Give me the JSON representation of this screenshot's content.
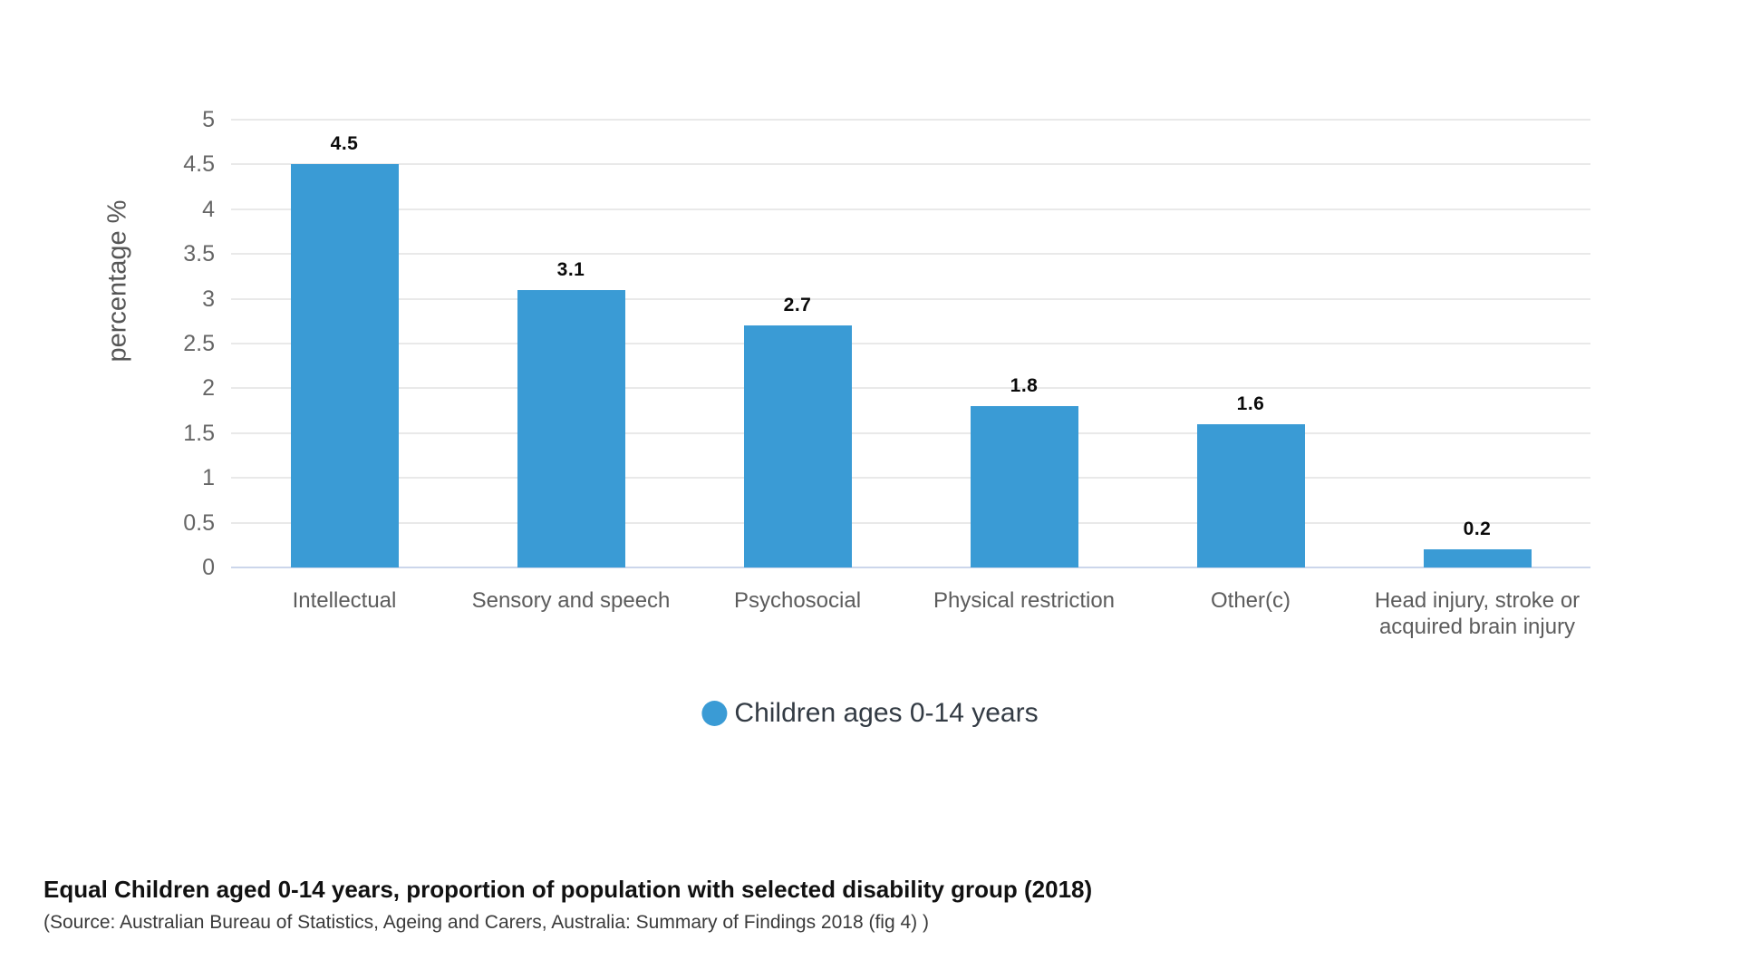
{
  "chart_data": {
    "type": "bar",
    "categories": [
      "Intellectual",
      "Sensory and speech",
      "Psychosocial",
      "Physical restriction",
      "Other(c)",
      "Head injury, stroke or acquired brain injury"
    ],
    "values": [
      4.5,
      3.1,
      2.7,
      1.8,
      1.6,
      0.2
    ],
    "value_labels": [
      "4.5",
      "3.1",
      "2.7",
      "1.8",
      "1.6",
      "0.2"
    ],
    "series": [
      {
        "name": "Children ages 0-14 years",
        "values": [
          4.5,
          3.1,
          2.7,
          1.8,
          1.6,
          0.2
        ]
      }
    ],
    "xlabel": "",
    "ylabel": "percentage %",
    "ylim": [
      0,
      5
    ],
    "ytick_step": 0.5,
    "ytick_labels": [
      "5",
      "4.5",
      "4",
      "3.5",
      "3",
      "2.5",
      "2",
      "1.5",
      "1",
      "0.5",
      "0"
    ],
    "grid": true,
    "legend_position": "bottom-center"
  },
  "legend": {
    "label": "Children ages 0-14 years"
  },
  "axis": {
    "y_title": "percentage %"
  },
  "caption": {
    "title": "Equal Children aged 0-14 years, proportion of population with selected disability group (2018)",
    "source": "(Source: Australian Bureau of Statistics, Ageing and Carers, Australia: Summary of Findings 2018 (fig 4) )"
  },
  "colors": {
    "bar": "#3a9bd5",
    "gridline": "#e9e9e9",
    "zero_line": "#ccd6eb",
    "tick_text": "#666666",
    "category_text": "#5c5c5c",
    "legend_text": "#333b44",
    "value_text": "#0a0a0a"
  }
}
